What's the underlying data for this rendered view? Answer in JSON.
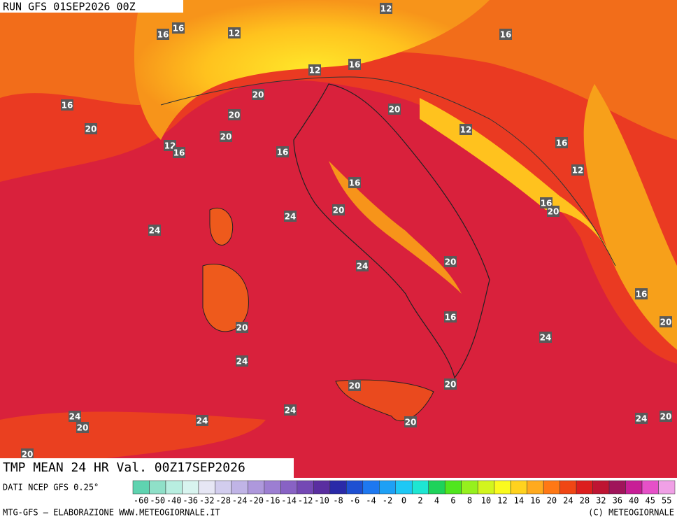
{
  "header": {
    "run": "RUN GFS 01SEP2026 00Z"
  },
  "map": {
    "field_title": "TMP MEAN 24 HR Val. 00Z17SEP2026",
    "contour_labels": [
      12,
      16,
      16,
      12,
      16,
      12,
      16,
      16,
      20,
      20,
      20,
      20,
      12,
      20,
      12,
      16,
      16,
      16,
      12,
      16,
      16,
      20,
      20,
      24,
      24,
      24,
      20,
      16,
      16,
      20,
      20,
      24,
      24,
      20,
      20,
      24,
      24,
      20,
      24,
      20,
      24,
      20,
      20
    ]
  },
  "legend": {
    "source": "DATI NCEP GFS 0.25°",
    "ticks": [
      -60,
      -50,
      -40,
      -36,
      -32,
      -28,
      -24,
      -20,
      -16,
      -14,
      -12,
      -10,
      -8,
      -6,
      -4,
      -2,
      0,
      2,
      4,
      6,
      8,
      10,
      12,
      14,
      16,
      20,
      24,
      28,
      32,
      36,
      40,
      45,
      55
    ],
    "colors": [
      "#5fd3b0",
      "#8fe0c8",
      "#b8eee0",
      "#d8f4ef",
      "#e6e6f4",
      "#d2cdee",
      "#c0b4e6",
      "#ae98dc",
      "#9c7ed2",
      "#8862c4",
      "#7448b4",
      "#5a2ea0",
      "#2a2aa8",
      "#1e50d2",
      "#1e78f0",
      "#1ea0f5",
      "#1ec8f5",
      "#1ee6d2",
      "#1ed25a",
      "#50e61e",
      "#96f01e",
      "#d2f51e",
      "#fafa1e",
      "#ffd21e",
      "#ffaa1e",
      "#ff7814",
      "#f04614",
      "#dc1e1e",
      "#be1432",
      "#a0145a",
      "#c81e96",
      "#e650c8",
      "#f0a0e6"
    ]
  },
  "footer": {
    "left": "MTG-GFS — ELABORAZIONE WWW.METEOGIORNALE.IT",
    "right": "(C) METEOGIORNALE"
  }
}
